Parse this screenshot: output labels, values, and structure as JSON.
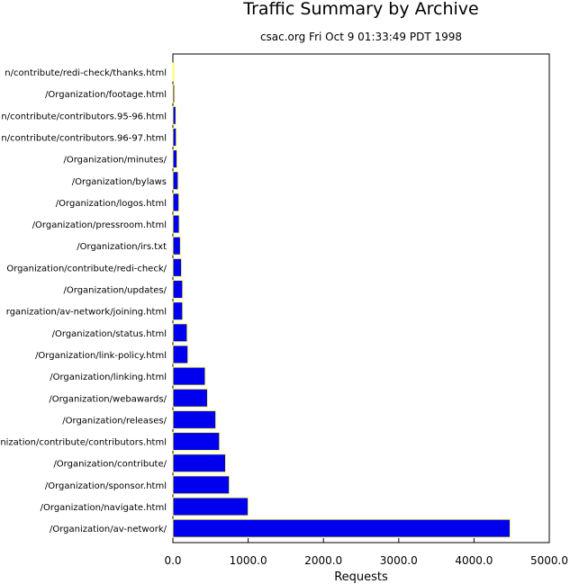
{
  "chart_data": {
    "type": "bar",
    "orientation": "horizontal",
    "title": "Traffic Summary by Archive",
    "subtitle": "csac.org Fri Oct  9 01:33:49 PDT 1998",
    "xlabel": "Requests",
    "xlim": [
      0,
      5000
    ],
    "xticks": [
      "0.0",
      "1000.0",
      "2000.0",
      "3000.0",
      "4000.0",
      "5000.0"
    ],
    "bar_color": "#0000ee",
    "bar_edge_color": "#ffff66",
    "categories": [
      "n/contribute/redi-check/thanks.html",
      "/Organization/footage.html",
      "n/contribute/contributors.95-96.html",
      "n/contribute/contributors.96-97.html",
      "/Organization/minutes/",
      "/Organization/bylaws",
      "/Organization/logos.html",
      "/Organization/pressroom.html",
      "/Organization/irs.txt",
      "Organization/contribute/redi-check/",
      "/Organization/updates/",
      "rganization/av-network/joining.html",
      "/Organization/status.html",
      "/Organization/link-policy.html",
      "/Organization/linking.html",
      "/Organization/webawards/",
      "/Organization/releases/",
      "nization/contribute/contributors.html",
      "/Organization/contribute/",
      "/Organization/sponsor.html",
      "/Organization/navigate.html",
      "/Organization/av-network/"
    ],
    "values": [
      10,
      22,
      40,
      45,
      55,
      70,
      80,
      85,
      100,
      115,
      130,
      130,
      190,
      200,
      430,
      460,
      570,
      620,
      700,
      750,
      1000,
      4480
    ]
  }
}
